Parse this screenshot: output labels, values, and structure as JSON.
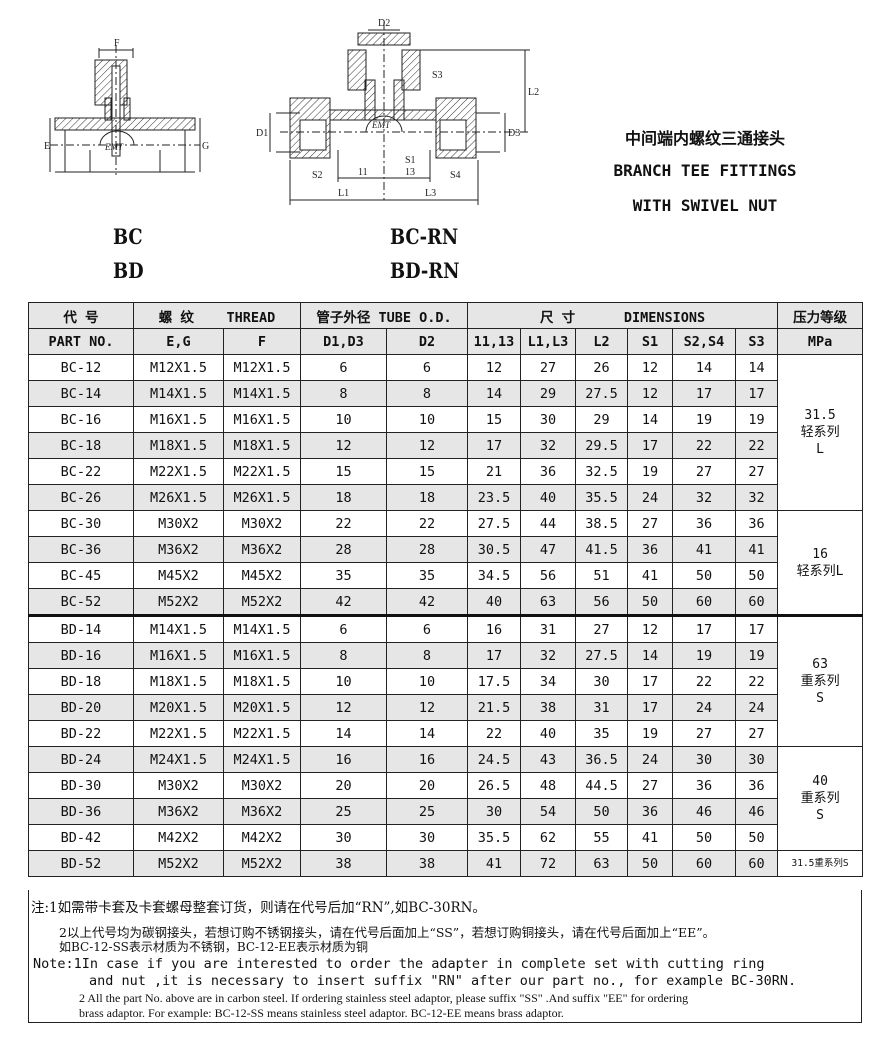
{
  "drawing_bc": {
    "labels": {
      "f": "F",
      "e": "E",
      "g": "G"
    },
    "logo": "EMT"
  },
  "drawing_rn": {
    "labels": {
      "d2": "D2",
      "s3": "S3",
      "l2": "L2",
      "d1": "D1",
      "d3": "D3",
      "s1": "S1",
      "s2": "S2",
      "s4": "S4",
      "l1_small": "11",
      "l3_small": "13",
      "l1": "L1",
      "l3": "L3"
    },
    "logo": "EMT"
  },
  "models": {
    "bc": "BC",
    "bd": "BD",
    "bc_rn": "BC-RN",
    "bd_rn": "BD-RN"
  },
  "title": {
    "cn": "中间端内螺纹三通接头",
    "en1": "BRANCH TEE FITTINGS",
    "en2": "WITH SWIVEL NUT"
  },
  "table": {
    "header1": {
      "code": "代  号",
      "thread_cn": "螺  纹",
      "thread_en": "THREAD",
      "tube": "管子外径 TUBE O.D.",
      "dim_cn": "尺  寸",
      "dim_en": "DIMENSIONS",
      "pressure": "压力等级"
    },
    "header2": [
      "PART  NO.",
      "E,G",
      "F",
      "D1,D3",
      "D2",
      "11,13",
      "L1,L3",
      "L2",
      "S1",
      "S2,S4",
      "S3",
      "MPa"
    ],
    "rows": [
      [
        "BC-12",
        "M12X1.5",
        "M12X1.5",
        "6",
        "6",
        "12",
        "27",
        "26",
        "12",
        "14",
        "14"
      ],
      [
        "BC-14",
        "M14X1.5",
        "M14X1.5",
        "8",
        "8",
        "14",
        "29",
        "27.5",
        "12",
        "17",
        "17"
      ],
      [
        "BC-16",
        "M16X1.5",
        "M16X1.5",
        "10",
        "10",
        "15",
        "30",
        "29",
        "14",
        "19",
        "19"
      ],
      [
        "BC-18",
        "M18X1.5",
        "M18X1.5",
        "12",
        "12",
        "17",
        "32",
        "29.5",
        "17",
        "22",
        "22"
      ],
      [
        "BC-22",
        "M22X1.5",
        "M22X1.5",
        "15",
        "15",
        "21",
        "36",
        "32.5",
        "19",
        "27",
        "27"
      ],
      [
        "BC-26",
        "M26X1.5",
        "M26X1.5",
        "18",
        "18",
        "23.5",
        "40",
        "35.5",
        "24",
        "32",
        "32"
      ],
      [
        "BC-30",
        "M30X2",
        "M30X2",
        "22",
        "22",
        "27.5",
        "44",
        "38.5",
        "27",
        "36",
        "36"
      ],
      [
        "BC-36",
        "M36X2",
        "M36X2",
        "28",
        "28",
        "30.5",
        "47",
        "41.5",
        "36",
        "41",
        "41"
      ],
      [
        "BC-45",
        "M45X2",
        "M45X2",
        "35",
        "35",
        "34.5",
        "56",
        "51",
        "41",
        "50",
        "50"
      ],
      [
        "BC-52",
        "M52X2",
        "M52X2",
        "42",
        "42",
        "40",
        "63",
        "56",
        "50",
        "60",
        "60"
      ],
      [
        "BD-14",
        "M14X1.5",
        "M14X1.5",
        "6",
        "6",
        "16",
        "31",
        "27",
        "12",
        "17",
        "17"
      ],
      [
        "BD-16",
        "M16X1.5",
        "M16X1.5",
        "8",
        "8",
        "17",
        "32",
        "27.5",
        "14",
        "19",
        "19"
      ],
      [
        "BD-18",
        "M18X1.5",
        "M18X1.5",
        "10",
        "10",
        "17.5",
        "34",
        "30",
        "17",
        "22",
        "22"
      ],
      [
        "BD-20",
        "M20X1.5",
        "M20X1.5",
        "12",
        "12",
        "21.5",
        "38",
        "31",
        "17",
        "24",
        "24"
      ],
      [
        "BD-22",
        "M22X1.5",
        "M22X1.5",
        "14",
        "14",
        "22",
        "40",
        "35",
        "19",
        "27",
        "27"
      ],
      [
        "BD-24",
        "M24X1.5",
        "M24X1.5",
        "16",
        "16",
        "24.5",
        "43",
        "36.5",
        "24",
        "30",
        "30"
      ],
      [
        "BD-30",
        "M30X2",
        "M30X2",
        "20",
        "20",
        "26.5",
        "48",
        "44.5",
        "27",
        "36",
        "36"
      ],
      [
        "BD-36",
        "M36X2",
        "M36X2",
        "25",
        "25",
        "30",
        "54",
        "50",
        "36",
        "46",
        "46"
      ],
      [
        "BD-42",
        "M42X2",
        "M42X2",
        "30",
        "30",
        "35.5",
        "62",
        "55",
        "41",
        "50",
        "50"
      ],
      [
        "BD-52",
        "M52X2",
        "M52X2",
        "38",
        "38",
        "41",
        "72",
        "63",
        "50",
        "60",
        "60"
      ]
    ],
    "pressure_groups": [
      {
        "start": 0,
        "span": 6,
        "lines": [
          "31.5",
          "轻系列",
          "L"
        ]
      },
      {
        "start": 6,
        "span": 4,
        "lines": [
          "16",
          "轻系列L"
        ]
      },
      {
        "start": 10,
        "span": 5,
        "lines": [
          "63",
          "重系列",
          "S"
        ]
      },
      {
        "start": 15,
        "span": 4,
        "lines": [
          "40",
          "重系列",
          "S"
        ]
      },
      {
        "start": 19,
        "span": 1,
        "lines": [
          "31.5重系列S"
        ]
      }
    ]
  },
  "notes": {
    "cn1": "注:1如需带卡套及卡套螺母整套订货，则请在代号后加“RN”,如BC-30RN。",
    "cn2a": "2以上代号均为碳钢接头，若想订购不锈钢接头，请在代号后面加上“SS”，若想订购铜接头，请在代号后面加上“EE”。",
    "cn2b": "如BC-12-SS表示材质为不锈钢，BC-12-EE表示材质为铜",
    "en1a": "Note:1In case if you are interested to order the adapter in complete set with cutting ring",
    "en1b": "and nut ,it is necessary to insert suffix \"RN\" after our part no., for example BC-30RN.",
    "en2a": "2 All the part No. above are in carbon steel. If ordering stainless steel adaptor, please suffix  \"SS\"  .And suffix  \"EE\"  for ordering",
    "en2b": "brass adaptor. For example: BC-12-SS  means stainless steel adaptor. BC-12-EE means brass adaptor."
  }
}
